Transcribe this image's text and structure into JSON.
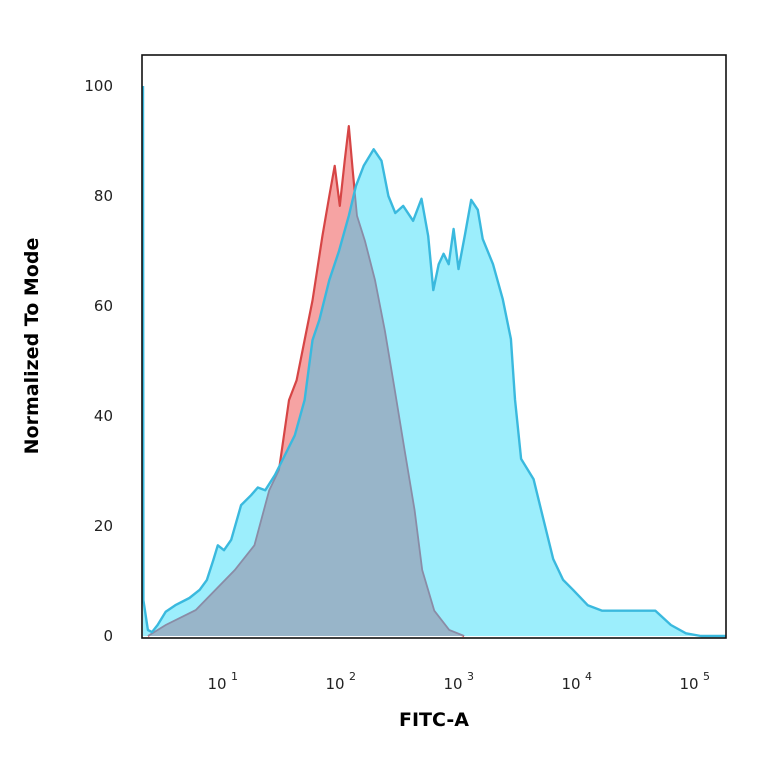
{
  "chart_data": {
    "type": "area",
    "title": "",
    "xlabel": "FITC-A",
    "ylabel": "Normalized To Mode",
    "x_scale": "log",
    "xlim": [
      2.1,
      195000
    ],
    "ylim": [
      0,
      100
    ],
    "x_ticks": [
      {
        "base": "10",
        "exp": "1"
      },
      {
        "base": "10",
        "exp": "2"
      },
      {
        "base": "10",
        "exp": "3"
      },
      {
        "base": "10",
        "exp": "4"
      },
      {
        "base": "10",
        "exp": "5"
      }
    ],
    "y_ticks": [
      "0",
      "20",
      "40",
      "60",
      "80",
      "100"
    ],
    "grid": false,
    "legend": "none",
    "series": [
      {
        "color_fill": "#9ceefc",
        "color_line": "#3ab9de",
        "points": [
          [
            2.15,
            100
          ],
          [
            2.2,
            6.5
          ],
          [
            2.4,
            1.1
          ],
          [
            2.6,
            0.7
          ],
          [
            2.9,
            2
          ],
          [
            3.4,
            4.4
          ],
          [
            4.1,
            5.6
          ],
          [
            5.4,
            6.9
          ],
          [
            6.6,
            8.4
          ],
          [
            7.6,
            10.2
          ],
          [
            8.6,
            13.8
          ],
          [
            9.4,
            16.5
          ],
          [
            10.6,
            15.6
          ],
          [
            12.2,
            17.5
          ],
          [
            14.8,
            23.8
          ],
          [
            18,
            25.6
          ],
          [
            20.5,
            27
          ],
          [
            23.7,
            26.5
          ],
          [
            28.7,
            29.3
          ],
          [
            34.8,
            32.9
          ],
          [
            42.2,
            36.5
          ],
          [
            51.1,
            42.9
          ],
          [
            59.6,
            53.8
          ],
          [
            68.2,
            57.5
          ],
          [
            82.7,
            64.7
          ],
          [
            100,
            70
          ],
          [
            121,
            76.4
          ],
          [
            139,
            81.8
          ],
          [
            162,
            85.5
          ],
          [
            197,
            88.5
          ],
          [
            229,
            86.4
          ],
          [
            262,
            80
          ],
          [
            300,
            76.9
          ],
          [
            350,
            78.2
          ],
          [
            425,
            75.5
          ],
          [
            500,
            79.5
          ],
          [
            570,
            72.7
          ],
          [
            630,
            62.9
          ],
          [
            700,
            67.6
          ],
          [
            770,
            69.5
          ],
          [
            850,
            67.6
          ],
          [
            935,
            74
          ],
          [
            1030,
            66.7
          ],
          [
            1170,
            73
          ],
          [
            1320,
            79.3
          ],
          [
            1500,
            77.5
          ],
          [
            1650,
            72.2
          ],
          [
            2020,
            67.6
          ],
          [
            2440,
            61.3
          ],
          [
            2860,
            54
          ],
          [
            3100,
            43
          ],
          [
            3490,
            32.2
          ],
          [
            4460,
            28.5
          ],
          [
            5390,
            21.3
          ],
          [
            6530,
            14
          ],
          [
            7930,
            10.2
          ],
          [
            9620,
            8.4
          ],
          [
            12800,
            5.6
          ],
          [
            17000,
            4.6
          ],
          [
            48000,
            4.6
          ],
          [
            65000,
            2
          ],
          [
            87000,
            0.5
          ],
          [
            117000,
            0
          ],
          [
            195000,
            0
          ]
        ]
      },
      {
        "color_fill": "#f6a3a3",
        "color_line": "#d64545",
        "points": [
          [
            2.4,
            0
          ],
          [
            3.4,
            2
          ],
          [
            6.1,
            4.7
          ],
          [
            13.1,
            12
          ],
          [
            19.2,
            16.5
          ],
          [
            25.6,
            26.5
          ],
          [
            31,
            30.2
          ],
          [
            37.7,
            42.9
          ],
          [
            43.7,
            46.5
          ],
          [
            51.1,
            53.8
          ],
          [
            59.6,
            61
          ],
          [
            72.3,
            72.7
          ],
          [
            82.7,
            80
          ],
          [
            91.9,
            85.5
          ],
          [
            101.6,
            78.2
          ],
          [
            111.8,
            86.4
          ],
          [
            121,
            92.7
          ],
          [
            131,
            84.5
          ],
          [
            142,
            76.4
          ],
          [
            166,
            71.8
          ],
          [
            202,
            64.7
          ],
          [
            245,
            55.5
          ],
          [
            297,
            44.7
          ],
          [
            360,
            33.8
          ],
          [
            437,
            22.9
          ],
          [
            507,
            12
          ],
          [
            642,
            4.6
          ],
          [
            860,
            1.1
          ],
          [
            1150,
            0
          ]
        ]
      }
    ]
  }
}
